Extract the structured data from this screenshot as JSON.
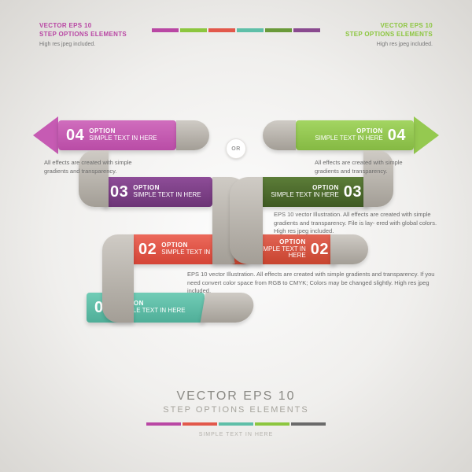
{
  "header_left": {
    "line1": "VECTOR EPS 10",
    "line2": "STEP OPTIONS ELEMENTS",
    "line3": "High res jpeg included.",
    "color": "#b947a4"
  },
  "header_right": {
    "line1": "VECTOR EPS 10",
    "line2": "STEP OPTIONS ELEMENTS",
    "line3": "High res jpeg included.",
    "color": "#8cc63f"
  },
  "or_label": "OR",
  "legend_colors": [
    "#b947a4",
    "#8cc63f",
    "#e2584b",
    "#5fbfa8",
    "#6a9a3a",
    "#8a4a8f"
  ],
  "ribbon_left": [
    {
      "num": "04",
      "title": "OPTION",
      "sub": "SIMPLE TEXT\nIN HERE",
      "color": "#c65bb3",
      "arrow": true
    },
    {
      "num": "03",
      "title": "OPTION",
      "sub": "SIMPLE TEXT\nIN HERE",
      "color": "#7d3f87"
    },
    {
      "num": "02",
      "title": "OPTION",
      "sub": "SIMPLE TEXT\nIN HERE",
      "color": "#e2584b"
    },
    {
      "num": "01",
      "title": "OPTION",
      "sub": "SIMPLE TEXT\nIN HERE",
      "color": "#5fbfa8"
    }
  ],
  "ribbon_right": [
    {
      "num": "04",
      "title": "OPTION",
      "sub": "SIMPLE TEXT\nIN HERE",
      "color": "#95c950",
      "arrow": true
    },
    {
      "num": "03",
      "title": "OPTION",
      "sub": "SIMPLE TEXT\nIN HERE",
      "color": "#4e6b2e"
    },
    {
      "num": "02",
      "title": "OPTION",
      "sub": "SIMPLE TEXT\nIN HERE",
      "color": "#d8533f"
    }
  ],
  "desc_left_04": "All effects are created\nwith simple gradients\nand transparency.",
  "desc_right_04": "All effects are created\nwith simple gradients\nand transparency.",
  "desc_right_03": "EPS 10 vector Illustration. All effects are created\nwith simple gradients and transparency. File is lay-\nered with global colors. High res jpeg included.",
  "desc_right_02": "EPS 10 vector Illustration. All effects are created with simple gradients and\ntransparency. If you need convert color space from RGB to CMYK; Colors may\nbe changed slightly. High res jpeg included.",
  "footer": {
    "line1": "VECTOR EPS 10",
    "line2": "STEP OPTIONS ELEMENTS",
    "line3": "SIMPLE TEXT IN HERE"
  },
  "footer_legend": [
    "#b947a4",
    "#e2584b",
    "#5fbfa8",
    "#8cc63f",
    "#6a6a6a"
  ]
}
